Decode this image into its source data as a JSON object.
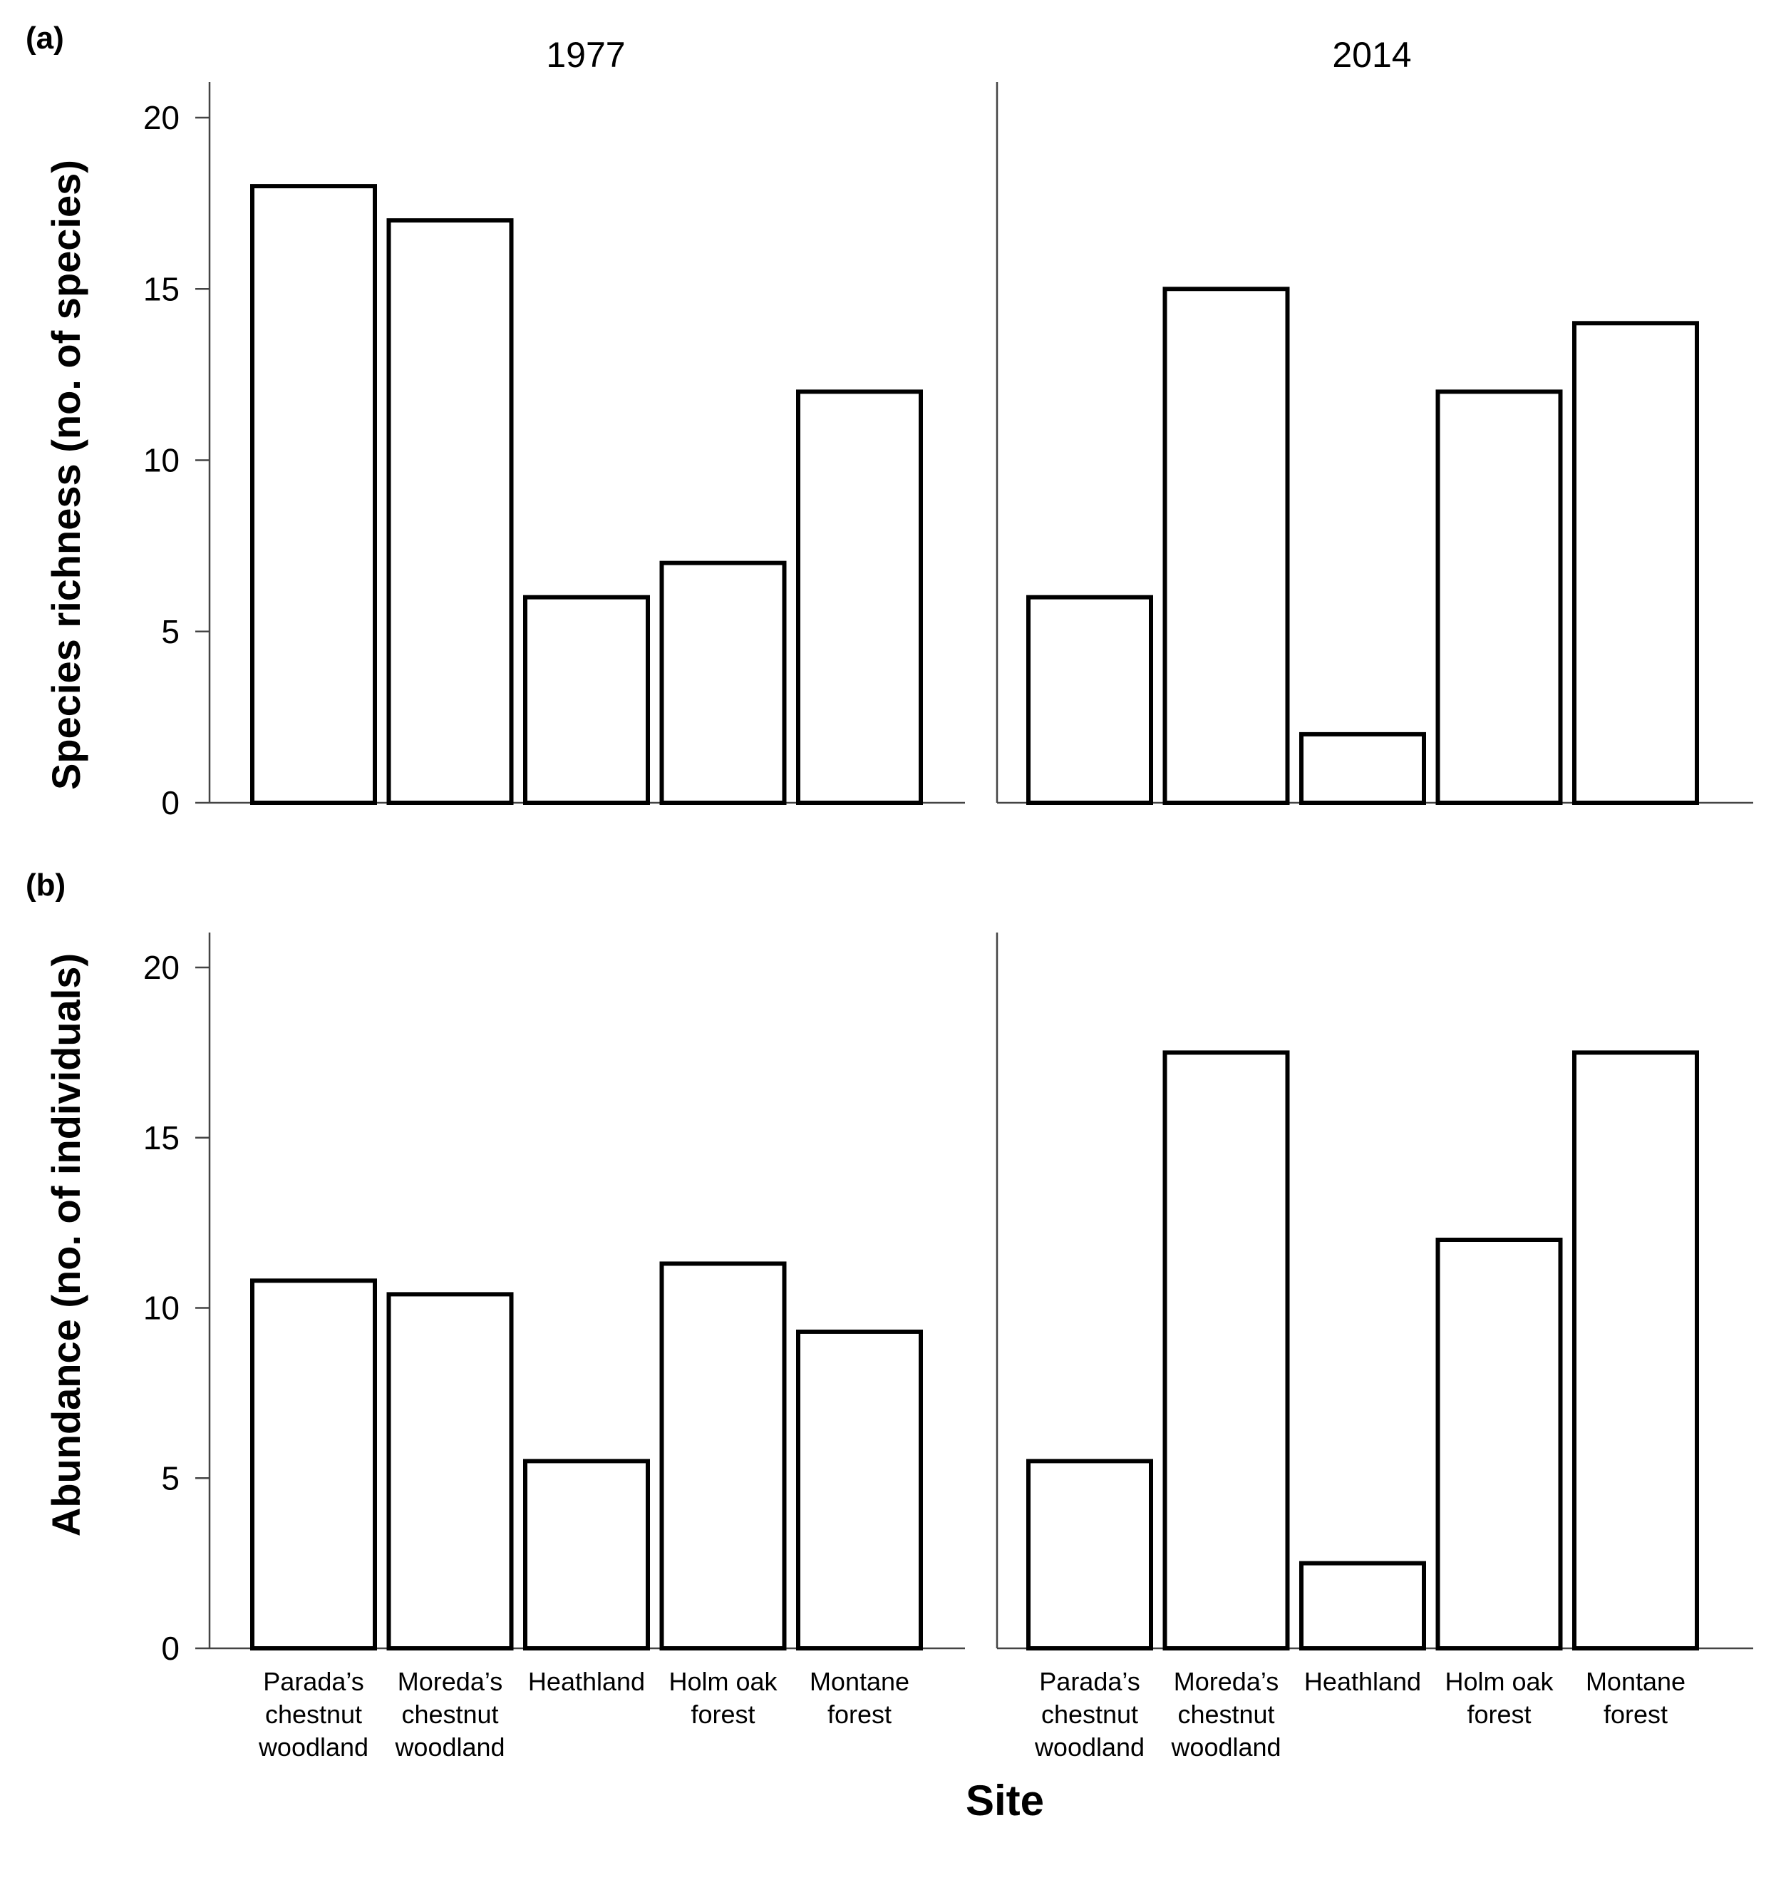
{
  "chart_data": [
    {
      "type": "bar",
      "panel_label": "(a)",
      "ylabel": "Species richness (no. of species)",
      "xlabel": "",
      "ylim": [
        0,
        21
      ],
      "yticks": [
        0,
        5,
        10,
        15,
        20
      ],
      "categories": [
        "Parada’s chestnut woodland",
        "Moreda’s chestnut woodland",
        "Heathland",
        "Holm oak forest",
        "Montane forest"
      ],
      "facets": [
        {
          "title": "1977",
          "values": [
            18,
            17,
            6,
            7,
            12
          ]
        },
        {
          "title": "2014",
          "values": [
            6,
            15,
            2,
            12,
            14
          ]
        }
      ]
    },
    {
      "type": "bar",
      "panel_label": "(b)",
      "ylabel": "Abundance (no. of individuals)",
      "xlabel": "Site",
      "ylim": [
        0,
        21
      ],
      "yticks": [
        0,
        5,
        10,
        15,
        20
      ],
      "categories": [
        "Parada’s chestnut woodland",
        "Moreda’s chestnut woodland",
        "Heathland",
        "Holm oak forest",
        "Montane forest"
      ],
      "category_label_lines": [
        [
          "Parada’s",
          "chestnut",
          "woodland"
        ],
        [
          "Moreda’s",
          "chestnut",
          "woodland"
        ],
        [
          "Heathland"
        ],
        [
          "Holm oak",
          "forest"
        ],
        [
          "Montane",
          "forest"
        ]
      ],
      "facets": [
        {
          "title": "1977",
          "values": [
            10.8,
            10.4,
            5.5,
            11.3,
            9.3
          ]
        },
        {
          "title": "2014",
          "values": [
            5.5,
            17.5,
            2.5,
            12,
            17.5
          ]
        }
      ]
    }
  ]
}
